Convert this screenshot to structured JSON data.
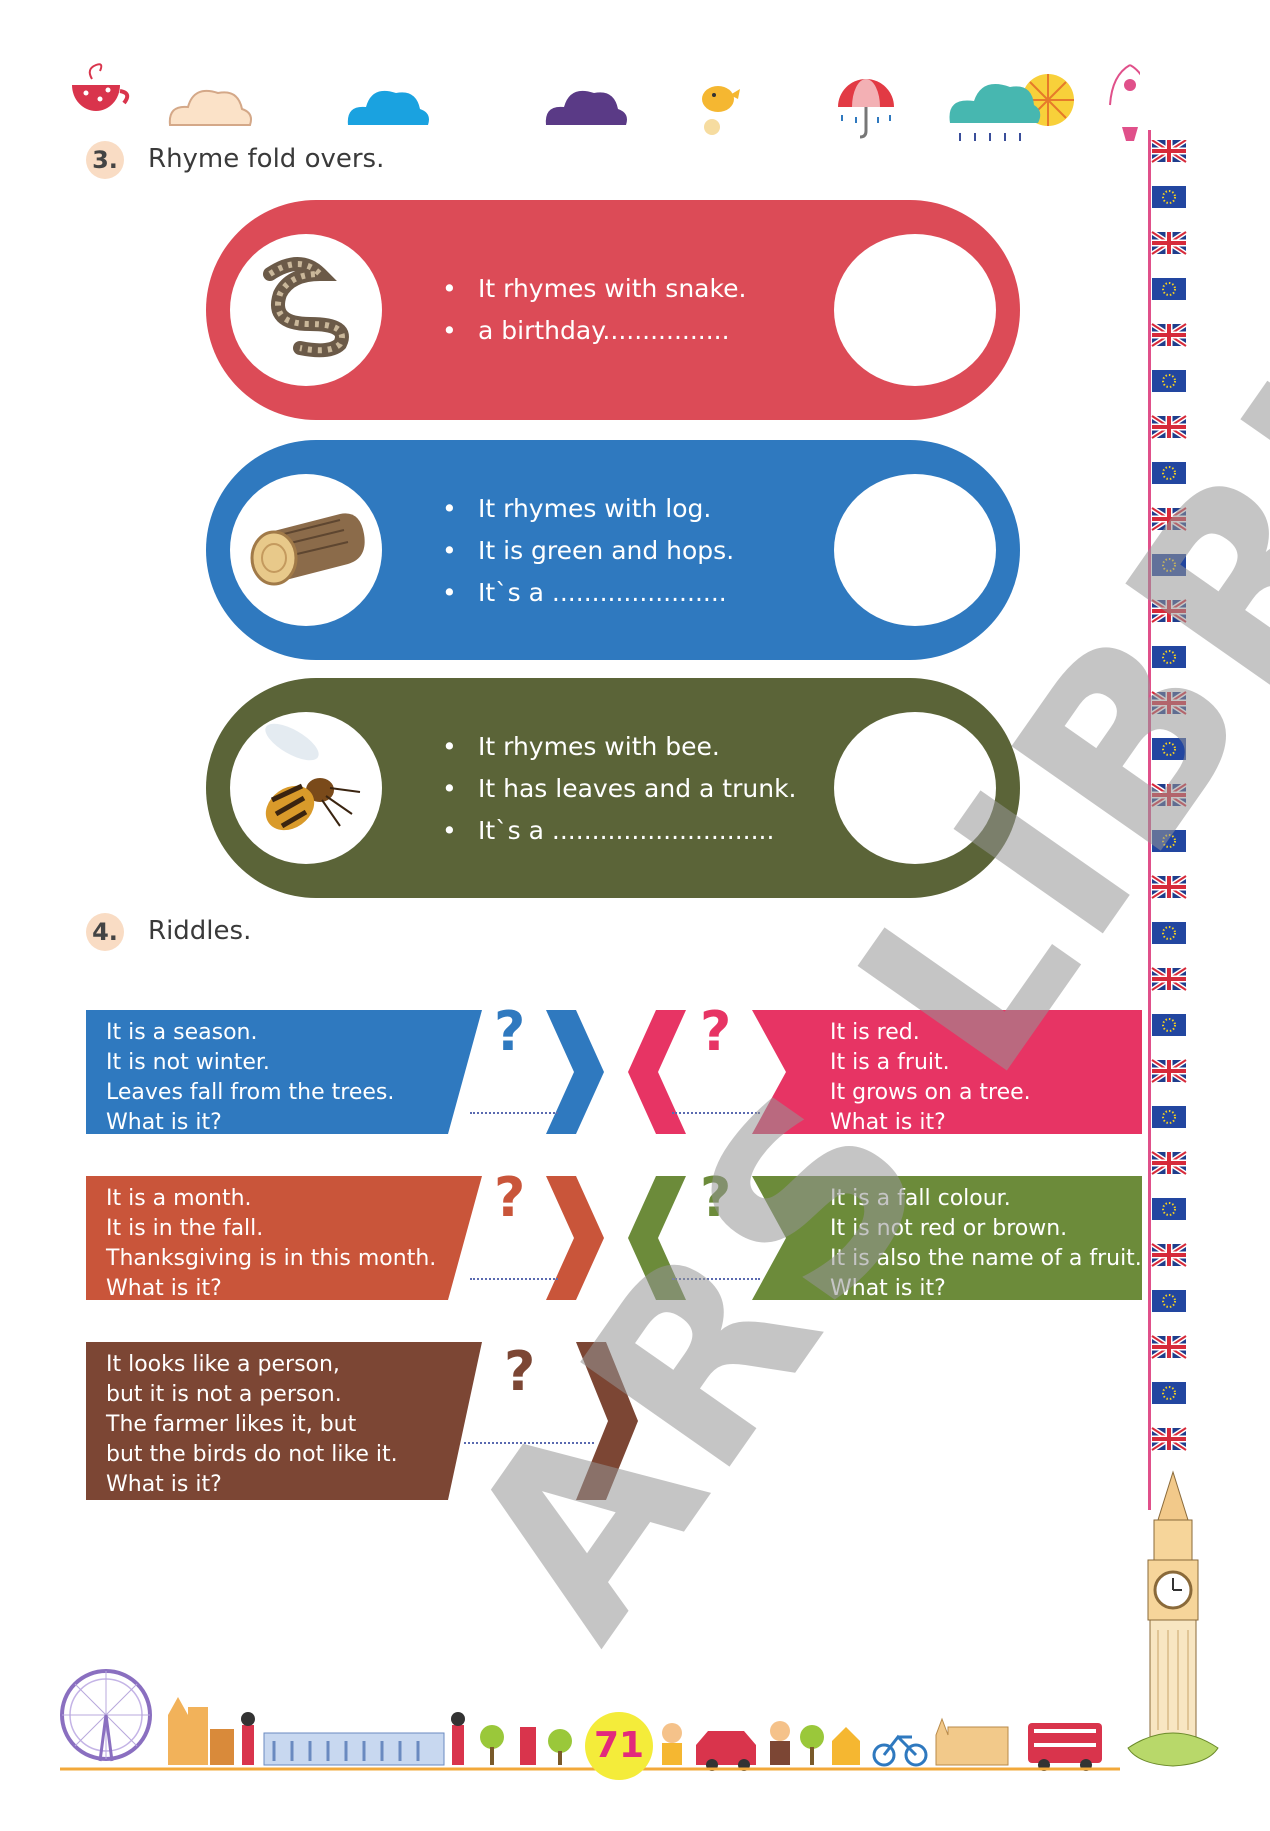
{
  "sections": {
    "rhyme": {
      "number": "3.",
      "title": "Rhyme fold overs."
    },
    "riddles": {
      "number": "4.",
      "title": "Riddles."
    }
  },
  "fold_overs": [
    {
      "color": "#dc4b57",
      "image": "snake",
      "lines": [
        "It rhymes with snake.",
        "a birthday................"
      ]
    },
    {
      "color": "#2f79bf",
      "image": "log",
      "lines": [
        "It rhymes with log.",
        "It is green and hops.",
        "It`s a ......................"
      ]
    },
    {
      "color": "#5b6438",
      "image": "bee",
      "lines": [
        "It rhymes with bee.",
        "It has leaves and a trunk.",
        "It`s a ............................"
      ]
    }
  ],
  "riddles": [
    {
      "color": "#2f79bf",
      "qcolor": "#2f79bf",
      "lines": [
        "It is a season.",
        "It is not winter.",
        "Leaves fall from the trees.",
        "What is it?"
      ]
    },
    {
      "color": "#e73464",
      "qcolor": "#e73464",
      "lines": [
        "It is red.",
        "It is a fruit.",
        "It grows on a tree.",
        "What is it?"
      ]
    },
    {
      "color": "#c9553a",
      "qcolor": "#c9553a",
      "lines": [
        "It is a month.",
        "It is in the fall.",
        "Thanksgiving is in this month.",
        "What is it?"
      ]
    },
    {
      "color": "#6c8b3a",
      "qcolor": "#6c8b3a",
      "lines": [
        "It is a fall colour.",
        "It is not red or brown.",
        "It is also the name of a fruit.",
        "What is it?"
      ]
    },
    {
      "color": "#7c4634",
      "qcolor": "#7c4634",
      "lines": [
        "It looks like a person,",
        "but it is not a person.",
        "The farmer likes it, but",
        "but the birds do not like it.",
        "What is it?"
      ]
    }
  ],
  "question_mark": "?",
  "watermark": "ARS LIBRI",
  "page_number": "71",
  "icons": [
    "teacup-icon",
    "cloud-icon",
    "bird-icon",
    "umbrella-icon",
    "rain-cloud-sun-icon",
    "fountain-icon",
    "uk-flag-icon",
    "eu-flag-icon",
    "big-ben-icon",
    "london-eye-icon",
    "london-skyline-icon",
    "bus-icon",
    "taxi-icon",
    "bicycle-icon"
  ]
}
